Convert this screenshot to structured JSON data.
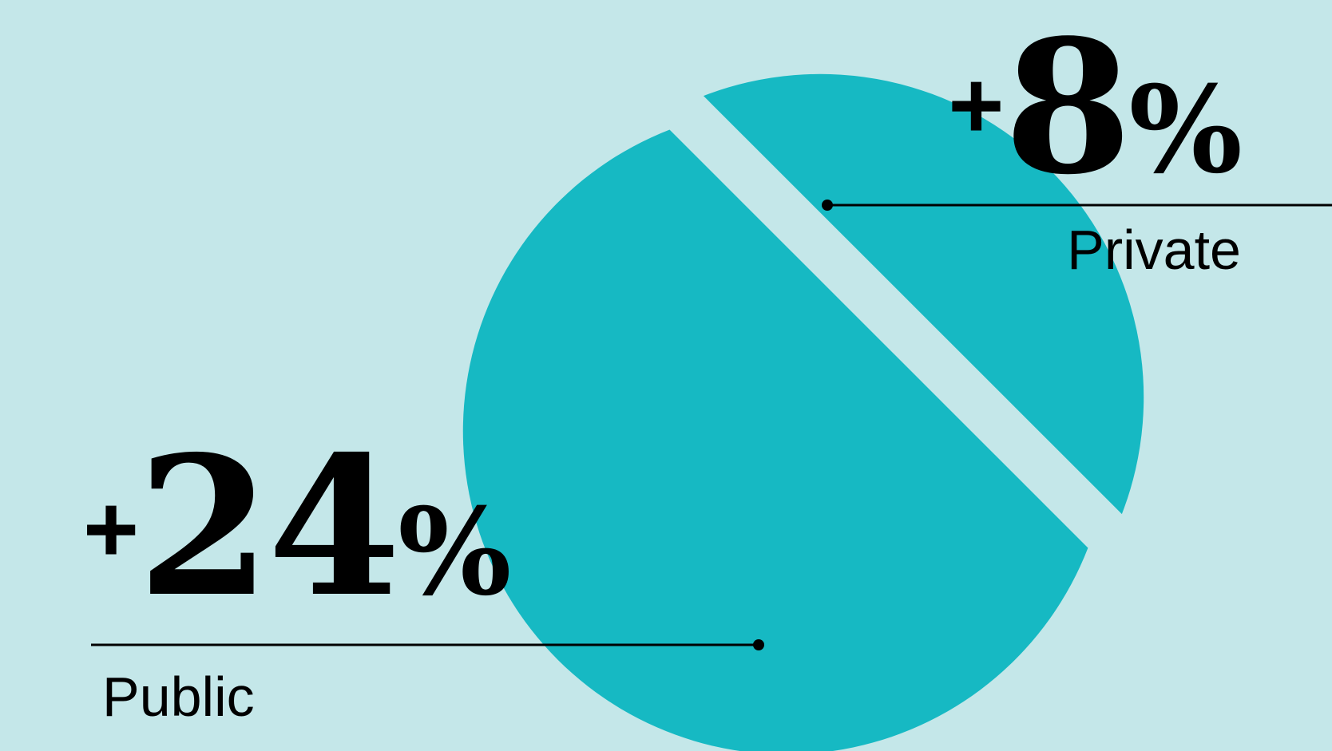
{
  "chart_data": {
    "type": "pie",
    "slices": [
      {
        "label": "Private",
        "display_value": "+8%",
        "value": 8
      },
      {
        "label": "Public",
        "display_value": "+24%",
        "value": 24
      }
    ],
    "title": "",
    "legend": "none",
    "colors": {
      "background": "#c4e7e9",
      "slice": "#16b9c3",
      "text": "#000000"
    }
  },
  "labels": {
    "private": {
      "plus": "+",
      "number": "8",
      "pct": "%",
      "name": "Private"
    },
    "public": {
      "plus": "+",
      "number": "24",
      "pct": "%",
      "name": "Public"
    }
  }
}
